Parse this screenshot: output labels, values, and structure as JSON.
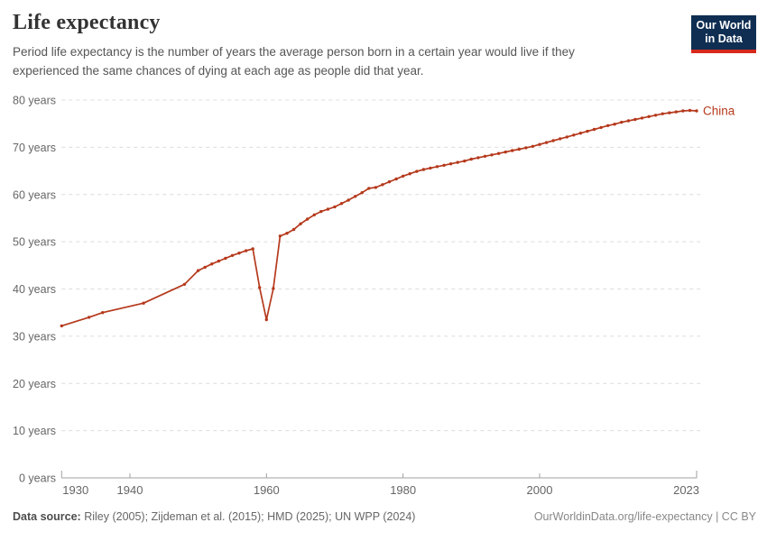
{
  "header": {
    "title": "Life expectancy",
    "subtitle_line1": "Period life expectancy is the number of years the average person born in a certain year would live if they",
    "subtitle_line2": "experienced the same chances of dying at each age as people did that year.",
    "logo_line1": "Our World",
    "logo_line2": "in Data"
  },
  "colors": {
    "line": "#b5391c",
    "grid": "#dcdcdc",
    "axis": "#a0a0a0",
    "tick_label": "#666666",
    "logo_bg": "#0f2e52",
    "logo_stripe": "#d8291c"
  },
  "chart_data": {
    "type": "line",
    "title": "Life expectancy",
    "xlabel": "",
    "ylabel": "",
    "xlim": [
      1930,
      2023
    ],
    "ylim": [
      0,
      80
    ],
    "grid": "horizontal-dashed",
    "legend_position": "end-of-line",
    "y_ticks": [
      {
        "value": 0,
        "label": "0 years"
      },
      {
        "value": 10,
        "label": "10 years"
      },
      {
        "value": 20,
        "label": "20 years"
      },
      {
        "value": 30,
        "label": "30 years"
      },
      {
        "value": 40,
        "label": "40 years"
      },
      {
        "value": 50,
        "label": "50 years"
      },
      {
        "value": 60,
        "label": "60 years"
      },
      {
        "value": 70,
        "label": "70 years"
      },
      {
        "value": 80,
        "label": "80 years"
      }
    ],
    "x_ticks": [
      {
        "value": 1930,
        "label": "1930",
        "align": "start"
      },
      {
        "value": 1940,
        "label": "1940",
        "align": "middle"
      },
      {
        "value": 1960,
        "label": "1960",
        "align": "middle"
      },
      {
        "value": 1980,
        "label": "1980",
        "align": "middle"
      },
      {
        "value": 2000,
        "label": "2000",
        "align": "middle"
      },
      {
        "value": 2023,
        "label": "2023",
        "align": "end"
      }
    ],
    "series": [
      {
        "name": "China",
        "color": "#b5391c",
        "points": [
          [
            1930,
            32.2
          ],
          [
            1934,
            34
          ],
          [
            1936,
            35
          ],
          [
            1942,
            37
          ],
          [
            1948,
            41
          ],
          [
            1950,
            43.9
          ],
          [
            1951,
            44.6
          ],
          [
            1952,
            45.3
          ],
          [
            1953,
            45.9
          ],
          [
            1954,
            46.5
          ],
          [
            1955,
            47.1
          ],
          [
            1956,
            47.6
          ],
          [
            1957,
            48.1
          ],
          [
            1958,
            48.5
          ],
          [
            1959,
            40.3
          ],
          [
            1960,
            33.5
          ],
          [
            1961,
            40.1
          ],
          [
            1962,
            51.2
          ],
          [
            1963,
            51.8
          ],
          [
            1964,
            52.6
          ],
          [
            1965,
            53.8
          ],
          [
            1966,
            54.8
          ],
          [
            1967,
            55.7
          ],
          [
            1968,
            56.4
          ],
          [
            1969,
            56.9
          ],
          [
            1970,
            57.4
          ],
          [
            1971,
            58.1
          ],
          [
            1972,
            58.8
          ],
          [
            1973,
            59.6
          ],
          [
            1974,
            60.4
          ],
          [
            1975,
            61.3
          ],
          [
            1976,
            61.5
          ],
          [
            1977,
            62.1
          ],
          [
            1978,
            62.7
          ],
          [
            1979,
            63.3
          ],
          [
            1980,
            63.9
          ],
          [
            1981,
            64.4
          ],
          [
            1982,
            64.9
          ],
          [
            1983,
            65.3
          ],
          [
            1984,
            65.6
          ],
          [
            1985,
            65.9
          ],
          [
            1986,
            66.2
          ],
          [
            1987,
            66.5
          ],
          [
            1988,
            66.8
          ],
          [
            1989,
            67.1
          ],
          [
            1990,
            67.5
          ],
          [
            1991,
            67.8
          ],
          [
            1992,
            68.1
          ],
          [
            1993,
            68.4
          ],
          [
            1994,
            68.7
          ],
          [
            1995,
            69
          ],
          [
            1996,
            69.3
          ],
          [
            1997,
            69.6
          ],
          [
            1998,
            69.9
          ],
          [
            1999,
            70.2
          ],
          [
            2000,
            70.6
          ],
          [
            2001,
            71
          ],
          [
            2002,
            71.4
          ],
          [
            2003,
            71.8
          ],
          [
            2004,
            72.2
          ],
          [
            2005,
            72.6
          ],
          [
            2006,
            73
          ],
          [
            2007,
            73.4
          ],
          [
            2008,
            73.8
          ],
          [
            2009,
            74.2
          ],
          [
            2010,
            74.6
          ],
          [
            2011,
            74.9
          ],
          [
            2012,
            75.3
          ],
          [
            2013,
            75.6
          ],
          [
            2014,
            75.9
          ],
          [
            2015,
            76.2
          ],
          [
            2016,
            76.5
          ],
          [
            2017,
            76.8
          ],
          [
            2018,
            77.1
          ],
          [
            2019,
            77.3
          ],
          [
            2020,
            77.5
          ],
          [
            2021,
            77.7
          ],
          [
            2022,
            77.8
          ],
          [
            2023,
            77.7
          ]
        ]
      }
    ]
  },
  "footer": {
    "source_label": "Data source:",
    "source_text": " Riley (2005); Zijdeman et al. (2015); HMD (2025); UN WPP (2024)",
    "attribution": "OurWorldinData.org/life-expectancy | CC BY"
  }
}
